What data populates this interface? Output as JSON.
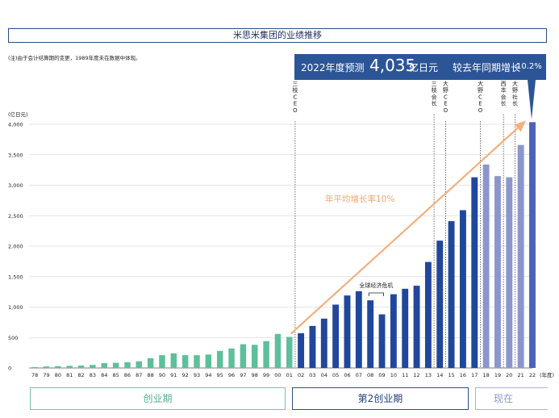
{
  "title": "米思米集团的业绩推移",
  "note": "(注)由于会计结算期的变更，1989年度未在数据中体现。",
  "callout": {
    "label": "2022年度预测",
    "value": "4,035",
    "unit": "亿日元",
    "growth_label": "较去年同期增长",
    "growth_value": "10.2%"
  },
  "trend_label": "年平均增长率10%",
  "crisis_label": "全球经济危机",
  "events": [
    {
      "year": "01",
      "text": "三枝CEO"
    },
    {
      "year": "13",
      "text": "三枝会长"
    },
    {
      "year": "14",
      "text": "大野CEO"
    },
    {
      "year": "17",
      "text": "大野CEO"
    },
    {
      "year": "19",
      "text": "西本会长"
    },
    {
      "year": "20",
      "text": "大野社长"
    }
  ],
  "phases": [
    {
      "label": "创业期"
    },
    {
      "label": "第2创业期"
    },
    {
      "label": "现在"
    }
  ],
  "colors": {
    "phase1": "#5ebf9c",
    "phase2": "#20479b",
    "phase3": "#8b96cc",
    "forecast": "#4a62b8",
    "trend": "#f2b07f"
  },
  "chart_data": {
    "type": "bar",
    "ylabel": "(亿日元)",
    "xlabel": "(年度)",
    "ylim": [
      0,
      4000
    ],
    "yticks": [
      "0",
      "500",
      "1,000",
      "1,500",
      "2,000",
      "2,500",
      "3,000",
      "3,500",
      "4,000"
    ],
    "categories": [
      "78",
      "79",
      "80",
      "81",
      "82",
      "83",
      "84",
      "85",
      "86",
      "87",
      "88",
      "90",
      "91",
      "92",
      "93",
      "94",
      "95",
      "96",
      "97",
      "98",
      "99",
      "00",
      "01",
      "02",
      "03",
      "04",
      "05",
      "06",
      "07",
      "08",
      "09",
      "10",
      "11",
      "12",
      "13",
      "14",
      "15",
      "16",
      "17",
      "18",
      "19",
      "20",
      "21",
      "22"
    ],
    "values": [
      15,
      25,
      30,
      35,
      40,
      50,
      80,
      85,
      95,
      110,
      160,
      210,
      240,
      210,
      210,
      220,
      280,
      320,
      390,
      380,
      440,
      560,
      510,
      570,
      690,
      810,
      1040,
      1190,
      1260,
      1110,
      880,
      1210,
      1300,
      1350,
      1740,
      2090,
      2410,
      2590,
      3130,
      3340,
      3150,
      3130,
      3660,
      4035
    ],
    "phase": [
      1,
      1,
      1,
      1,
      1,
      1,
      1,
      1,
      1,
      1,
      1,
      1,
      1,
      1,
      1,
      1,
      1,
      1,
      1,
      1,
      1,
      1,
      1,
      2,
      2,
      2,
      2,
      2,
      2,
      2,
      2,
      2,
      2,
      2,
      2,
      2,
      2,
      2,
      2,
      3,
      3,
      3,
      3,
      3
    ],
    "grid": true
  }
}
